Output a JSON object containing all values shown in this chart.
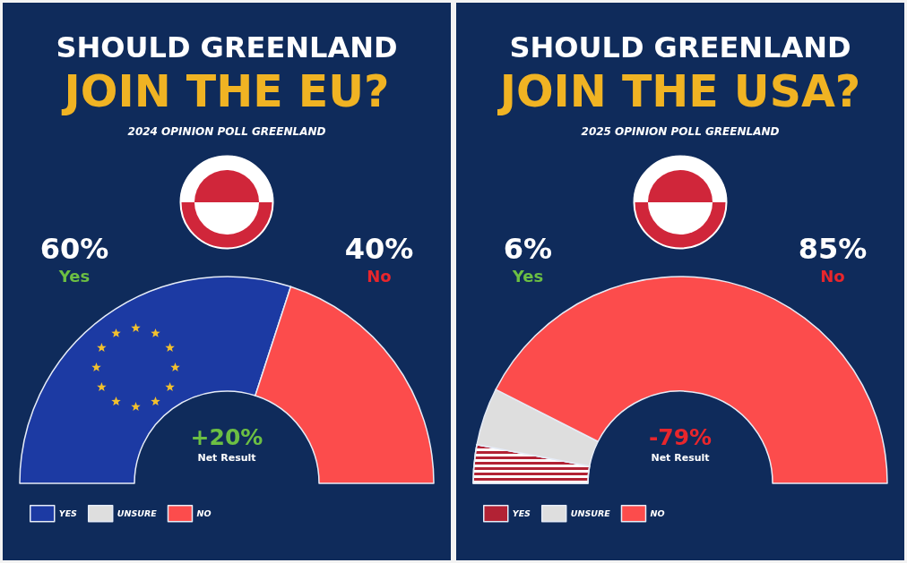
{
  "chart_data": [
    {
      "type": "donut",
      "title": "SHOULD GREENLAND\nJOIN THE EU?",
      "subtitle": "2024 OPINION POLL GREENLAND",
      "categories": [
        "YES",
        "UNSURE",
        "NO"
      ],
      "values": [
        60,
        0,
        40
      ],
      "colors": [
        "#1c3aa3",
        "#dedede",
        "#fc4c4c"
      ],
      "annotations": [
        "60%",
        "Yes",
        "40%",
        "No",
        "+20%",
        "Net Result"
      ],
      "legend": "bottom left"
    },
    {
      "type": "donut",
      "title": "SHOULD GREENLAND\nJOIN THE USA?",
      "subtitle": "2025 OPINION POLL GREENLAND",
      "categories": [
        "YES",
        "UNSURE",
        "NO"
      ],
      "values": [
        6,
        9,
        85
      ],
      "colors": [
        "#b22234",
        "#dedede",
        "#fc4c4c"
      ],
      "annotations": [
        "6%",
        "Yes",
        "85%",
        "No",
        "-79%",
        "Net Result"
      ],
      "legend": "bottom left"
    }
  ]
}
